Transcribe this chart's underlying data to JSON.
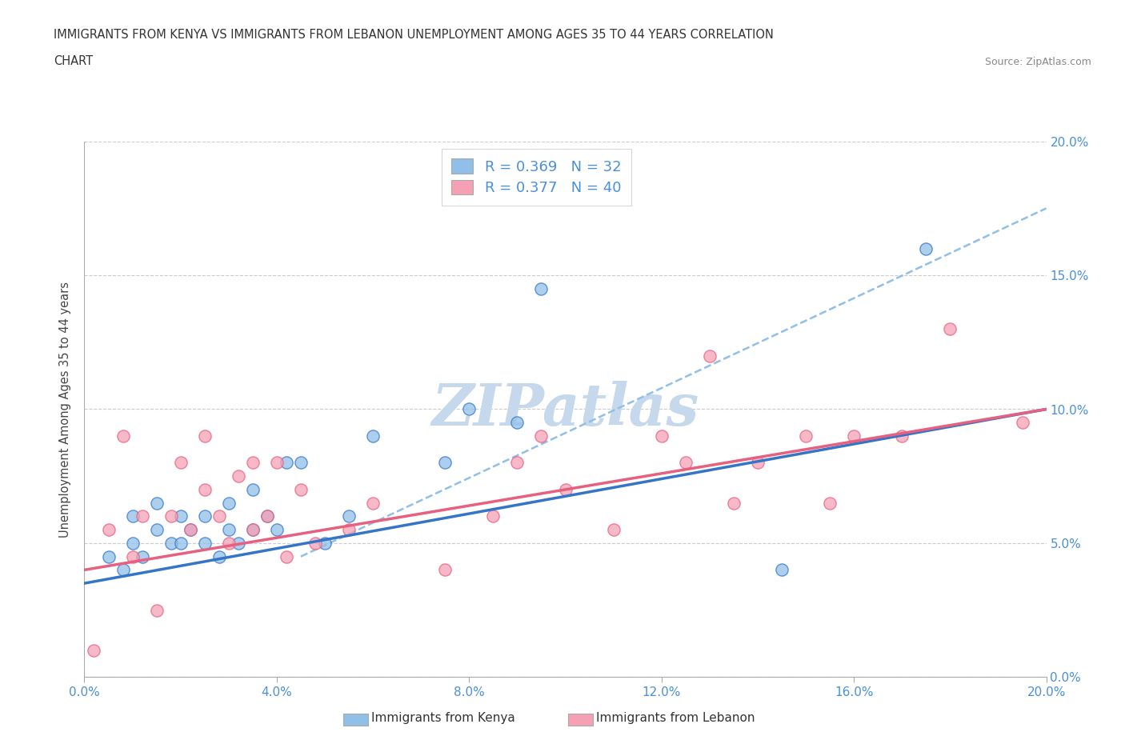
{
  "title_line1": "IMMIGRANTS FROM KENYA VS IMMIGRANTS FROM LEBANON UNEMPLOYMENT AMONG AGES 35 TO 44 YEARS CORRELATION",
  "title_line2": "CHART",
  "source": "Source: ZipAtlas.com",
  "ylabel": "Unemployment Among Ages 35 to 44 years",
  "xlim": [
    0.0,
    0.2
  ],
  "ylim": [
    0.0,
    0.2
  ],
  "xticks": [
    0.0,
    0.04,
    0.08,
    0.12,
    0.16,
    0.2
  ],
  "yticks": [
    0.0,
    0.05,
    0.1,
    0.15,
    0.2
  ],
  "kenya_R": 0.369,
  "kenya_N": 32,
  "lebanon_R": 0.377,
  "lebanon_N": 40,
  "kenya_color": "#90bfe8",
  "lebanon_color": "#f5a0b5",
  "kenya_line_color": "#3575c8",
  "lebanon_line_color": "#e86080",
  "dashed_line_color": "#90bfe8",
  "tick_color": "#4a90d9",
  "watermark": "ZIPatlas",
  "watermark_color": "#c5d8ec",
  "legend_label_kenya": "R = 0.369   N = 32",
  "legend_label_lebanon": "R = 0.377   N = 40",
  "kenya_scatter_x": [
    0.005,
    0.008,
    0.01,
    0.01,
    0.012,
    0.015,
    0.015,
    0.018,
    0.02,
    0.02,
    0.022,
    0.025,
    0.025,
    0.028,
    0.03,
    0.03,
    0.032,
    0.035,
    0.035,
    0.038,
    0.04,
    0.042,
    0.045,
    0.05,
    0.055,
    0.06,
    0.075,
    0.08,
    0.09,
    0.095,
    0.145,
    0.175
  ],
  "kenya_scatter_y": [
    0.045,
    0.04,
    0.05,
    0.06,
    0.045,
    0.055,
    0.065,
    0.05,
    0.05,
    0.06,
    0.055,
    0.05,
    0.06,
    0.045,
    0.055,
    0.065,
    0.05,
    0.055,
    0.07,
    0.06,
    0.055,
    0.08,
    0.08,
    0.05,
    0.06,
    0.09,
    0.08,
    0.1,
    0.095,
    0.145,
    0.04,
    0.16
  ],
  "lebanon_scatter_x": [
    0.002,
    0.005,
    0.008,
    0.01,
    0.012,
    0.015,
    0.018,
    0.02,
    0.022,
    0.025,
    0.025,
    0.028,
    0.03,
    0.032,
    0.035,
    0.035,
    0.038,
    0.04,
    0.042,
    0.045,
    0.048,
    0.055,
    0.06,
    0.075,
    0.085,
    0.09,
    0.095,
    0.1,
    0.11,
    0.12,
    0.125,
    0.13,
    0.135,
    0.14,
    0.15,
    0.155,
    0.16,
    0.17,
    0.18,
    0.195
  ],
  "lebanon_scatter_y": [
    0.01,
    0.055,
    0.09,
    0.045,
    0.06,
    0.025,
    0.06,
    0.08,
    0.055,
    0.07,
    0.09,
    0.06,
    0.05,
    0.075,
    0.055,
    0.08,
    0.06,
    0.08,
    0.045,
    0.07,
    0.05,
    0.055,
    0.065,
    0.04,
    0.06,
    0.08,
    0.09,
    0.07,
    0.055,
    0.09,
    0.08,
    0.12,
    0.065,
    0.08,
    0.09,
    0.065,
    0.09,
    0.09,
    0.13,
    0.095
  ],
  "kenya_line_x": [
    0.0,
    0.2
  ],
  "kenya_line_y": [
    0.035,
    0.1
  ],
  "lebanon_line_x": [
    0.0,
    0.2
  ],
  "lebanon_line_y": [
    0.04,
    0.1
  ],
  "dashed_line_x": [
    0.045,
    0.2
  ],
  "dashed_line_y": [
    0.045,
    0.175
  ]
}
